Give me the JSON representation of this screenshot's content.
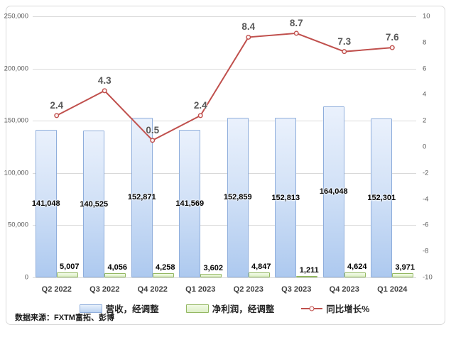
{
  "chart_data": {
    "type": "bar+line combo",
    "categories": [
      "Q2 2022",
      "Q3 2022",
      "Q4 2022",
      "Q1 2023",
      "Q2 2023",
      "Q3 2023",
      "Q4 2023",
      "Q1 2024"
    ],
    "series": [
      {
        "name": "营收，经调整",
        "type": "bar",
        "axis": "left",
        "values": [
          141048,
          140525,
          152871,
          141569,
          152859,
          152813,
          164048,
          152301
        ],
        "labels": [
          "141,048",
          "140,525",
          "152,871",
          "141,569",
          "152,859",
          "152,813",
          "164,048",
          "152,301"
        ],
        "fill_top": "#eaf1fc",
        "fill_bottom": "#adc9ef",
        "border_color": "#8faedc"
      },
      {
        "name": "净利润，经调整",
        "type": "bar",
        "axis": "left",
        "values": [
          5007,
          4056,
          4258,
          3602,
          4847,
          1211,
          4624,
          3971
        ],
        "labels": [
          "5,007",
          "4,056",
          "4,258",
          "3,602",
          "4,847",
          "1,211",
          "4,624",
          "3,971"
        ],
        "fill_top": "#f2fae8",
        "fill_bottom": "#ddf0c6",
        "border_color": "#94b863"
      },
      {
        "name": "同比增长%",
        "type": "line",
        "axis": "right",
        "values": [
          2.4,
          4.3,
          0.5,
          2.4,
          8.4,
          8.7,
          7.3,
          7.6
        ],
        "labels": [
          "2.4",
          "4.3",
          "0.5",
          "2.4",
          "8.4",
          "8.7",
          "7.3",
          "7.6"
        ],
        "line_color": "#c0504d",
        "marker": "open-circle"
      }
    ],
    "left_axis": {
      "min": 0,
      "max": 250000,
      "step": 50000,
      "tick_labels": [
        "250,000",
        "200,000",
        "150,000",
        "100,000",
        "50,000",
        "0"
      ]
    },
    "right_axis": {
      "min": -10,
      "max": 10,
      "step": 2,
      "tick_labels": [
        "10",
        "8",
        "6",
        "4",
        "2",
        "0",
        "-2",
        "-4",
        "-6",
        "-8",
        "-10"
      ]
    },
    "grid": "horizontal, light gray at left-axis ticks",
    "legend_position": "bottom-center",
    "legend": [
      "营收，经调整",
      "净利润，经调整",
      "同比增长%"
    ],
    "source": "数据来源：FXTM富拓、彭博",
    "colors": {
      "gridline": "#d9d9d9",
      "axis_text": "#595959",
      "category_text": "#3f3f3f",
      "bar_label_text": "#000000",
      "growth_label_text": "#595959",
      "frame_border": "#d9d9d9"
    }
  }
}
